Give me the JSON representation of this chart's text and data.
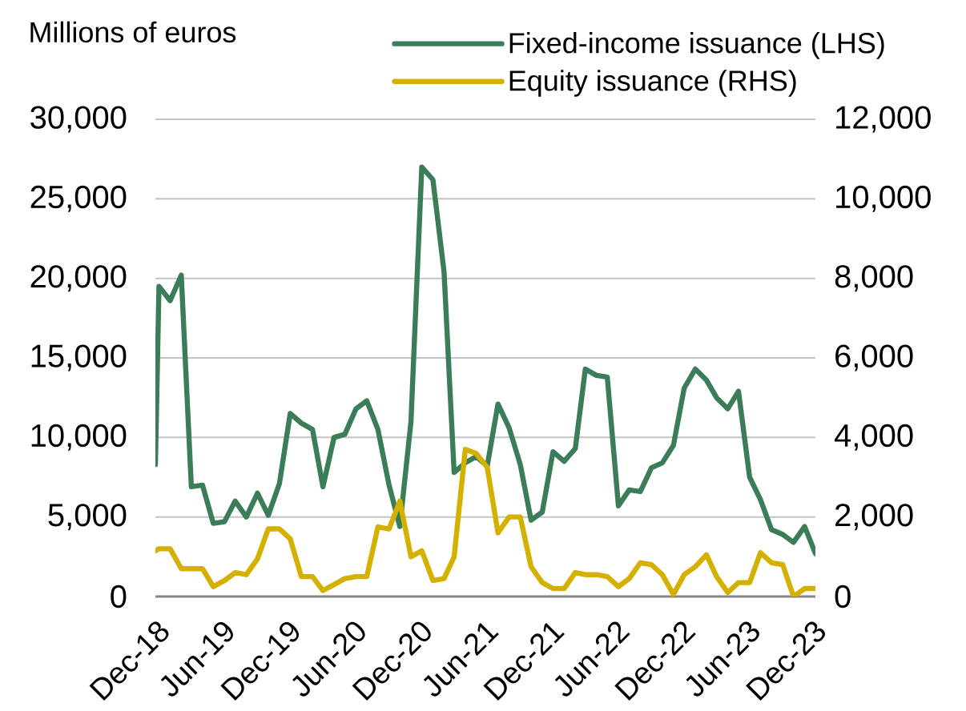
{
  "chart_data": {
    "type": "line",
    "ylabel": "Millions of euros",
    "x": [
      "2018-11-21",
      "2018-12",
      "2019-01",
      "2019-02",
      "2019-03",
      "2019-04",
      "2019-05",
      "2019-06",
      "2019-07",
      "2019-08",
      "2019-09",
      "2019-10",
      "2019-11",
      "2019-12",
      "2020-01",
      "2020-02",
      "2020-03",
      "2020-04",
      "2020-05",
      "2020-06",
      "2020-07",
      "2020-08",
      "2020-09",
      "2020-10",
      "2020-11",
      "2020-12",
      "2021-01",
      "2021-02",
      "2021-03",
      "2021-04",
      "2021-05",
      "2021-06",
      "2021-07",
      "2021-08",
      "2021-09",
      "2021-10",
      "2021-11",
      "2021-12",
      "2022-01",
      "2022-02",
      "2022-03",
      "2022-04",
      "2022-05",
      "2022-06",
      "2022-07",
      "2022-08",
      "2022-09",
      "2022-10",
      "2022-11",
      "2022-12",
      "2023-01",
      "2023-02",
      "2023-03",
      "2023-04",
      "2023-05",
      "2023-06",
      "2023-07",
      "2023-08",
      "2023-09",
      "2023-10",
      "2023-11",
      "2023-12"
    ],
    "xlim": [
      "2018-11-21",
      "2023-12"
    ],
    "xticks": [
      {
        "value": "2018-12",
        "label": "Dec-18"
      },
      {
        "value": "2019-06",
        "label": "Jun-19"
      },
      {
        "value": "2019-12",
        "label": "Dec-19"
      },
      {
        "value": "2020-06",
        "label": "Jun-20"
      },
      {
        "value": "2020-12",
        "label": "Dec-20"
      },
      {
        "value": "2021-06",
        "label": "Jun-21"
      },
      {
        "value": "2021-12",
        "label": "Dec-21"
      },
      {
        "value": "2022-06",
        "label": "Jun-22"
      },
      {
        "value": "2022-12",
        "label": "Dec-22"
      },
      {
        "value": "2023-06",
        "label": "Jun-23"
      },
      {
        "value": "2023-12",
        "label": "Dec-23"
      }
    ],
    "ylim": [
      0,
      30000
    ],
    "yticks": [
      0,
      {
        "value": 5000,
        "label": "5,000"
      },
      {
        "value": 10000,
        "label": "10,000"
      },
      {
        "value": 15000,
        "label": "15,000"
      },
      {
        "value": 20000,
        "label": "20,000"
      },
      {
        "value": 25000,
        "label": "25,000"
      },
      {
        "value": 30000,
        "label": "30,000"
      }
    ],
    "y2lim": [
      0,
      12000
    ],
    "y2ticks": [
      0,
      {
        "value": 2000,
        "label": "2,000"
      },
      {
        "value": 4000,
        "label": "4,000"
      },
      {
        "value": 6000,
        "label": "6,000"
      },
      {
        "value": 8000,
        "label": "8,000"
      },
      {
        "value": 10000,
        "label": "10,000"
      },
      {
        "value": 12000,
        "label": "12,000"
      }
    ],
    "grid": "y",
    "legend": "top right",
    "series": [
      {
        "name": "Fixed-income issuance (LHS)",
        "color": "#3b7d58",
        "values": [
          8300,
          19500,
          18600,
          20200,
          6900,
          7000,
          4600,
          4700,
          6000,
          5000,
          6500,
          5100,
          7100,
          11500,
          10900,
          10500,
          6900,
          10000,
          10200,
          11800,
          12300,
          10500,
          7000,
          4400,
          11000,
          27000,
          26200,
          20400,
          7800,
          8400,
          8800,
          8200,
          12100,
          10600,
          8300,
          4800,
          5300,
          9100,
          8500,
          9300,
          14300,
          13900,
          13800,
          5700,
          6700,
          6600,
          8100,
          8400,
          9500,
          13100,
          14300,
          13600,
          12500,
          11800,
          12900,
          7500,
          6100,
          4200,
          3900,
          3400,
          4400,
          2700
        ]
      },
      {
        "name": "Equity issuance (RHS)",
        "color": "#d4b000",
        "axis": "y2",
        "values": [
          1150,
          1200,
          1200,
          700,
          700,
          700,
          250,
          400,
          600,
          550,
          950,
          1700,
          1700,
          1450,
          500,
          500,
          150,
          300,
          450,
          500,
          500,
          1750,
          1700,
          2400,
          1000,
          1150,
          400,
          450,
          1000,
          3700,
          3600,
          3250,
          1600,
          2000,
          2000,
          750,
          350,
          200,
          200,
          600,
          550,
          550,
          500,
          250,
          450,
          850,
          800,
          550,
          50,
          550,
          750,
          1050,
          500,
          100,
          350,
          350,
          1100,
          850,
          800,
          0,
          200,
          200
        ]
      }
    ]
  }
}
